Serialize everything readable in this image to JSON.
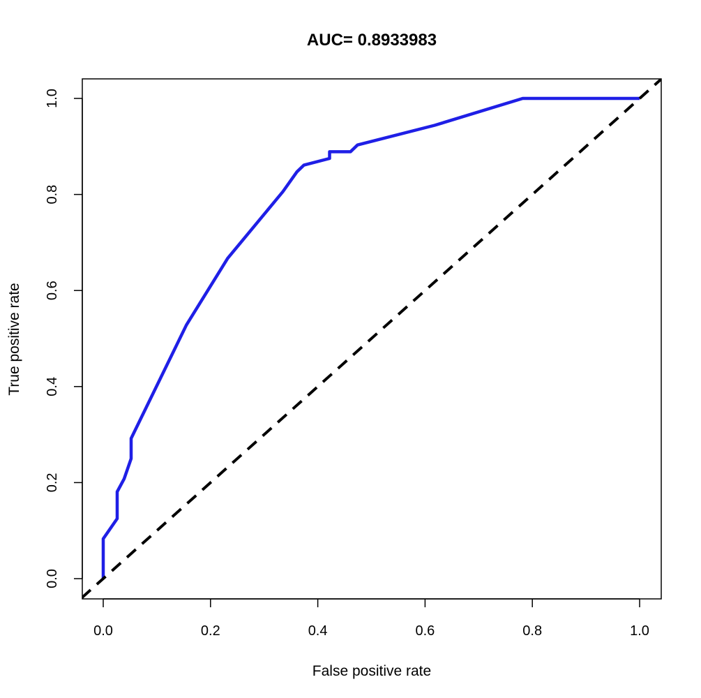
{
  "chart_data": {
    "type": "line",
    "title": "AUC= 0.8933983",
    "xlabel": "False positive rate",
    "ylabel": "True positive rate",
    "xlim": [
      0,
      1
    ],
    "ylim": [
      0,
      1
    ],
    "grid": false,
    "x_ticks": [
      "0.0",
      "0.2",
      "0.4",
      "0.6",
      "0.8",
      "1.0"
    ],
    "y_ticks": [
      "0.0",
      "0.2",
      "0.4",
      "0.6",
      "0.8",
      "1.0"
    ],
    "series": [
      {
        "color": "#1f1fe6",
        "style": "solid",
        "x": [
          0.0,
          0.0,
          0.026,
          0.026,
          0.039,
          0.052,
          0.052,
          0.155,
          0.232,
          0.335,
          0.361,
          0.374,
          0.422,
          0.422,
          0.461,
          0.474,
          0.618,
          0.782,
          1.0
        ],
        "y": [
          0.0,
          0.083,
          0.125,
          0.181,
          0.208,
          0.25,
          0.292,
          0.528,
          0.667,
          0.806,
          0.847,
          0.861,
          0.875,
          0.889,
          0.889,
          0.903,
          0.944,
          1.0,
          1.0
        ]
      },
      {
        "color": "#000000",
        "style": "dashed",
        "x": [
          -0.04,
          1.04
        ],
        "y": [
          -0.04,
          1.04
        ]
      }
    ]
  }
}
